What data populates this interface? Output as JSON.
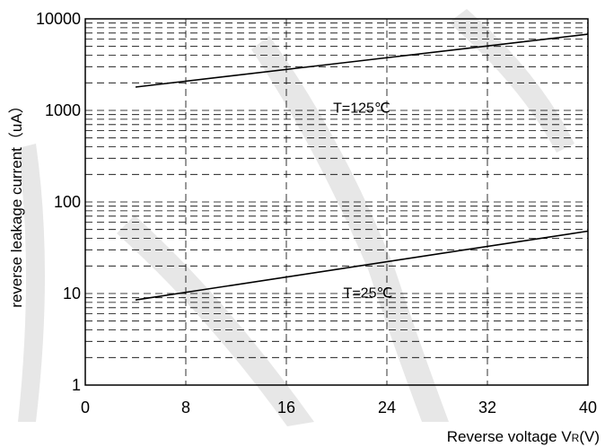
{
  "chart_data": {
    "type": "line",
    "title": "",
    "xlabel_main": "Reverse voltage V",
    "xlabel_sub": "R",
    "xlabel_unit": "(V)",
    "ylabel": "reverse leakage current（uA）",
    "xlim": [
      0,
      40
    ],
    "ylim": [
      1,
      10000
    ],
    "yscale": "log",
    "grid": true,
    "x_ticks": [
      "0",
      "8",
      "16",
      "24",
      "32",
      "40"
    ],
    "y_ticks": [
      "1",
      "10",
      "100",
      "1000",
      "10000"
    ],
    "series": [
      {
        "name": "T=125℃",
        "x": [
          4,
          40
        ],
        "y": [
          1800,
          6800
        ]
      },
      {
        "name": "T=25℃",
        "x": [
          4,
          40
        ],
        "y": [
          8.5,
          48
        ]
      }
    ],
    "annotations": [
      {
        "text": "T=125℃",
        "x": 22,
        "y": 950
      },
      {
        "text": "T=25℃",
        "x": 22.5,
        "y": 9
      }
    ]
  }
}
